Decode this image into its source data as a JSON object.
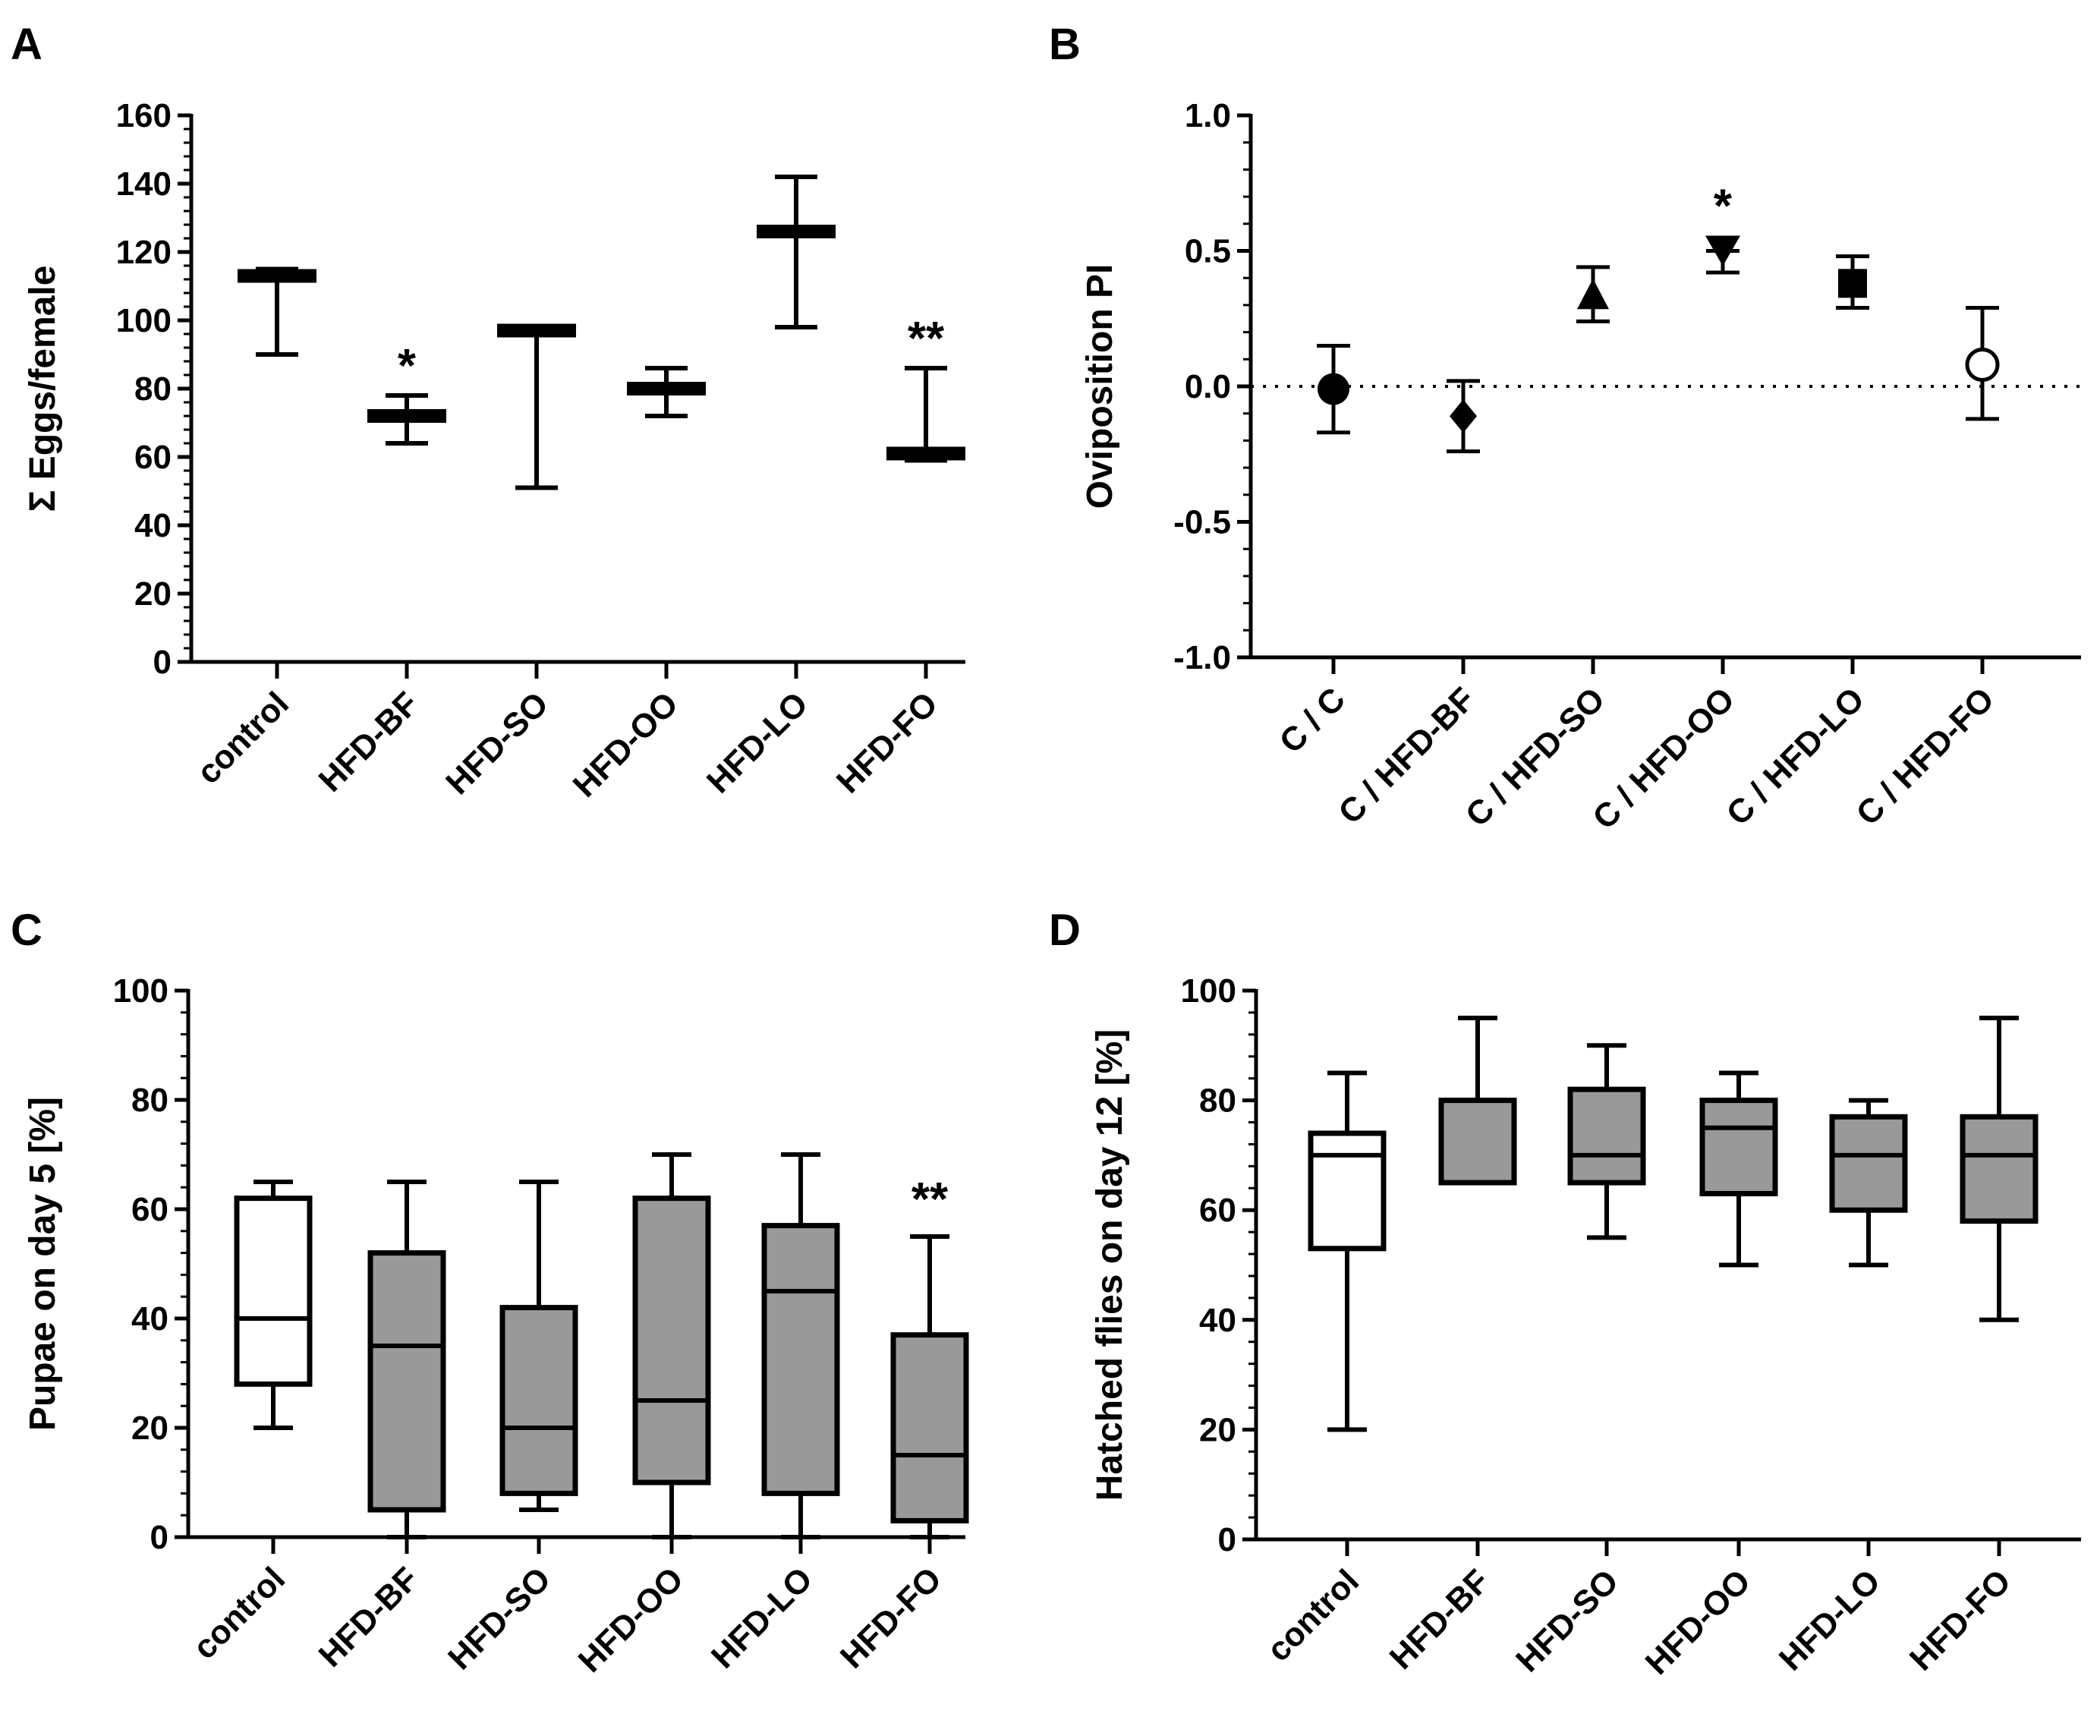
{
  "colors": {
    "ink": "#000000",
    "box_fill": "#999999",
    "control_fill": "#ffffff"
  },
  "chart_data": [
    {
      "panel": "A",
      "type": "bar",
      "ylabel": "Σ Eggs/female",
      "ylim": [
        0,
        160
      ],
      "yticks": [
        0,
        20,
        40,
        60,
        80,
        100,
        120,
        140,
        160
      ],
      "categories": [
        "control",
        "HFD-BF",
        "HFD-SO",
        "HFD-OO",
        "HFD-LO",
        "HFD-FO"
      ],
      "series": [
        {
          "center": [
            113,
            72,
            97,
            80,
            126,
            61
          ],
          "low": [
            90,
            64,
            51,
            72,
            98,
            59
          ],
          "high": [
            115,
            78,
            98,
            86,
            142,
            86
          ]
        }
      ],
      "significance": [
        "",
        "*",
        "",
        "",
        "",
        "**"
      ]
    },
    {
      "panel": "B",
      "type": "scatter",
      "ylabel": "Oviposition PI",
      "ylim": [
        -1.0,
        1.0
      ],
      "yticks": [
        "-1.0",
        "-0.5",
        "0.0",
        "0.5",
        "1.0"
      ],
      "categories": [
        "C / C",
        "C / HFD-BF",
        "C / HFD-SO",
        "C / HFD-OO",
        "C / HFD-LO",
        "C / HFD-FO"
      ],
      "reference_line": 0,
      "series": [
        {
          "values": [
            -0.01,
            -0.11,
            0.33,
            0.5,
            0.38,
            0.08
          ],
          "err_low": [
            -0.17,
            -0.24,
            0.24,
            0.42,
            0.29,
            -0.12
          ],
          "err_high": [
            0.15,
            0.02,
            0.44,
            0.5,
            0.48,
            0.29
          ],
          "markers": [
            "circle",
            "diamond",
            "triangle-up",
            "triangle-down",
            "square",
            "circle-open"
          ]
        }
      ],
      "significance": [
        "",
        "",
        "",
        "*",
        "",
        ""
      ]
    },
    {
      "panel": "C",
      "type": "bar",
      "ylabel": "Pupae on day 5 [%]",
      "ylim": [
        0,
        100
      ],
      "yticks": [
        0,
        20,
        40,
        60,
        80,
        100
      ],
      "categories": [
        "control",
        "HFD-BF",
        "HFD-SO",
        "HFD-OO",
        "HFD-LO",
        "HFD-FO"
      ],
      "series": [
        {
          "min": [
            20,
            0,
            5,
            0,
            0,
            0
          ],
          "q1": [
            28,
            5,
            8,
            10,
            8,
            3
          ],
          "median": [
            40,
            35,
            20,
            25,
            45,
            15
          ],
          "q3": [
            62,
            52,
            42,
            62,
            57,
            37
          ],
          "max": [
            65,
            65,
            65,
            70,
            70,
            55
          ]
        }
      ],
      "significance": [
        "",
        "",
        "",
        "",
        "",
        "**"
      ]
    },
    {
      "panel": "D",
      "type": "bar",
      "ylabel": "Hatched flies on day 12 [%]",
      "ylim": [
        0,
        100
      ],
      "yticks": [
        0,
        20,
        40,
        60,
        80,
        100
      ],
      "categories": [
        "control",
        "HFD-BF",
        "HFD-SO",
        "HFD-OO",
        "HFD-LO",
        "HFD-FO"
      ],
      "series": [
        {
          "min": [
            20,
            65,
            55,
            50,
            50,
            40
          ],
          "q1": [
            53,
            65,
            65,
            63,
            60,
            58
          ],
          "median": [
            70,
            80,
            70,
            75,
            70,
            70
          ],
          "q3": [
            74,
            80,
            82,
            80,
            77,
            77
          ],
          "max": [
            85,
            95,
            90,
            85,
            80,
            95
          ]
        }
      ],
      "significance": [
        "",
        "",
        "",
        "",
        "",
        ""
      ]
    }
  ]
}
